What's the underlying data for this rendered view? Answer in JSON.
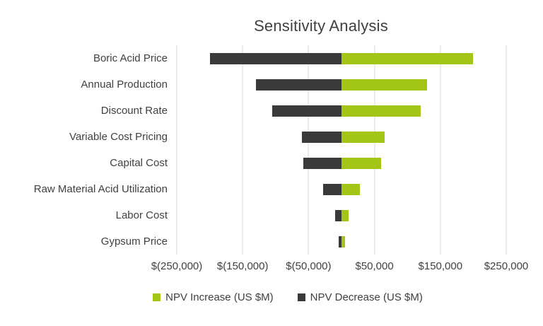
{
  "chart_data": {
    "type": "bar",
    "orientation": "horizontal",
    "subtype": "tornado",
    "title": "Sensitivity Analysis",
    "categories": [
      "Boric Acid Price",
      "Annual Production",
      "Discount Rate",
      "Variable Cost Pricing",
      "Capital Cost",
      "Raw Material Acid Utilization",
      "Labor Cost",
      "Gypsum Price"
    ],
    "series": [
      {
        "name": "NPV Increase (US $M)",
        "color": "#a2c516",
        "values": [
          200000,
          130000,
          120000,
          65000,
          60000,
          28000,
          11000,
          5000
        ]
      },
      {
        "name": "NPV Decrease (US $M)",
        "color": "#3a3a3a",
        "values": [
          -200000,
          -130000,
          -105000,
          -60000,
          -58000,
          -28000,
          -10000,
          -4000
        ]
      }
    ],
    "xlim": [
      -250000,
      250000
    ],
    "ticks": [
      {
        "value": -250000,
        "label": "$(250,000)"
      },
      {
        "value": -150000,
        "label": "$(150,000)"
      },
      {
        "value": -50000,
        "label": "$(50,000)"
      },
      {
        "value": 50000,
        "label": "$50,000"
      },
      {
        "value": 150000,
        "label": "$150,000"
      },
      {
        "value": 250000,
        "label": "$250,000"
      }
    ],
    "grid": "vertical",
    "gridline_color": "#d9d9d9",
    "text_color": "#404040",
    "legend_position": "bottom"
  }
}
